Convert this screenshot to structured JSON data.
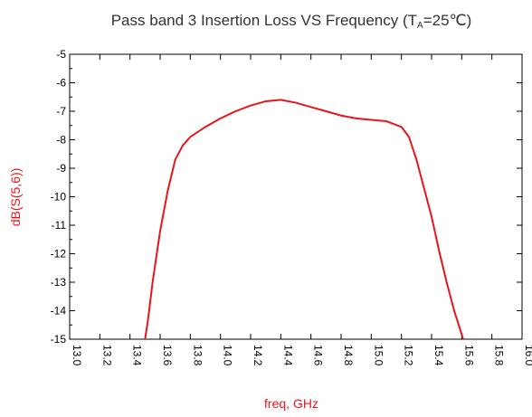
{
  "chart_data": {
    "type": "line",
    "title": "Pass band 3 Insertion Loss VS Frequency (T",
    "title_subscript": "A",
    "title_end": "=25℃)",
    "xlabel": "freq, GHz",
    "ylabel": "dB(S(5,6))",
    "x": [
      13.5,
      13.52,
      13.55,
      13.6,
      13.65,
      13.7,
      13.75,
      13.8,
      13.9,
      14.0,
      14.1,
      14.2,
      14.3,
      14.4,
      14.5,
      14.6,
      14.7,
      14.8,
      14.9,
      15.0,
      15.1,
      15.2,
      15.25,
      15.3,
      15.35,
      15.4,
      15.45,
      15.5,
      15.55,
      15.61
    ],
    "series": [
      {
        "name": "dB(S(5,6))",
        "color": "#e8141b",
        "values": [
          -15,
          -14.3,
          -13,
          -11.2,
          -9.8,
          -8.7,
          -8.2,
          -7.9,
          -7.55,
          -7.25,
          -7.0,
          -6.8,
          -6.65,
          -6.6,
          -6.7,
          -6.85,
          -7.0,
          -7.15,
          -7.25,
          -7.3,
          -7.35,
          -7.55,
          -7.9,
          -8.7,
          -9.7,
          -10.7,
          -11.9,
          -13.0,
          -14.0,
          -15
        ]
      }
    ],
    "xlim": [
      13.0,
      16.0
    ],
    "xticks": [
      {
        "value": 13.0,
        "label": "13.0"
      },
      {
        "value": 13.2,
        "label": "13.2"
      },
      {
        "value": 13.4,
        "label": "13.4"
      },
      {
        "value": 13.6,
        "label": "13.6"
      },
      {
        "value": 13.8,
        "label": "13.8"
      },
      {
        "value": 14.0,
        "label": "14.0"
      },
      {
        "value": 14.2,
        "label": "14.2"
      },
      {
        "value": 14.4,
        "label": "14.4"
      },
      {
        "value": 14.6,
        "label": "14.6"
      },
      {
        "value": 14.8,
        "label": "14.8"
      },
      {
        "value": 15.0,
        "label": "15.0"
      },
      {
        "value": 15.2,
        "label": "15.2"
      },
      {
        "value": 15.4,
        "label": "15.4"
      },
      {
        "value": 15.6,
        "label": "15.6"
      },
      {
        "value": 15.8,
        "label": "15.8"
      },
      {
        "value": 16.0,
        "label": "16.0"
      }
    ],
    "ylim": [
      -15,
      -5
    ],
    "yticks": [
      -5,
      -6,
      -7,
      -8,
      -9,
      -10,
      -11,
      -12,
      -13,
      -14,
      -15
    ],
    "grid": false
  }
}
